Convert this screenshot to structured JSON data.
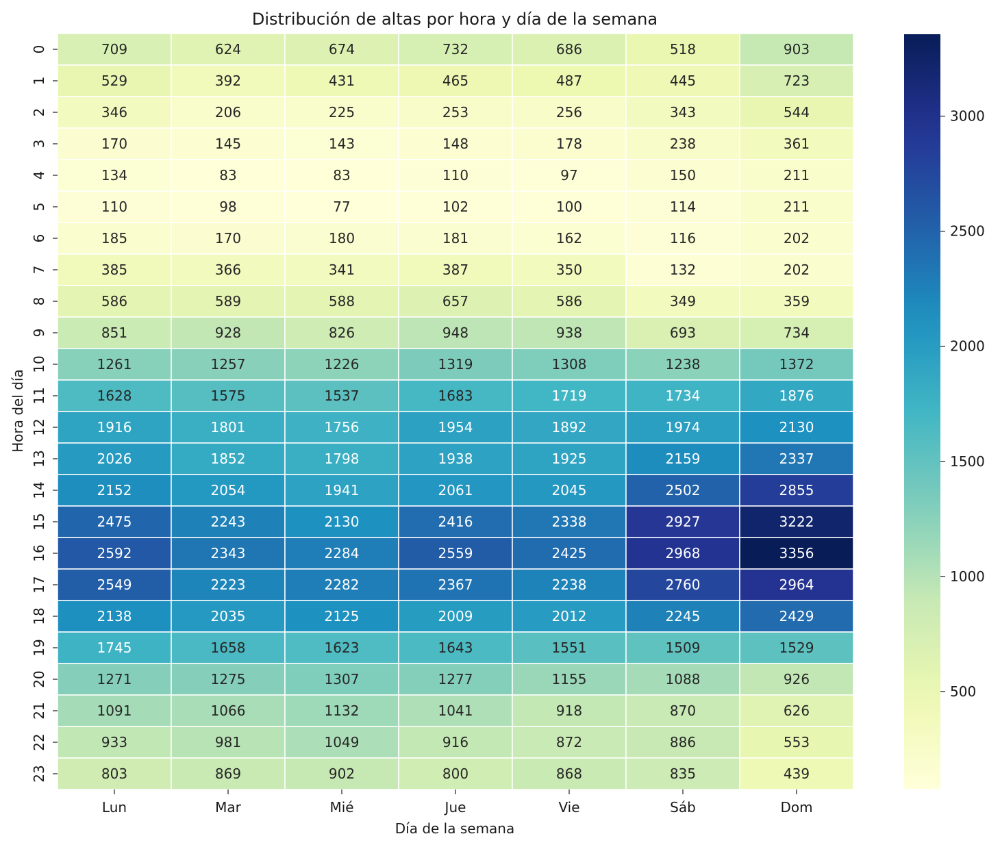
{
  "chart_data": {
    "type": "heatmap",
    "title": "Distribución de altas por hora y día de la semana",
    "xlabel": "Día de la semana",
    "ylabel": "Hora del día",
    "x_categories": [
      "Lun",
      "Mar",
      "Mié",
      "Jue",
      "Vie",
      "Sáb",
      "Dom"
    ],
    "y_categories": [
      "0",
      "1",
      "2",
      "3",
      "4",
      "5",
      "6",
      "7",
      "8",
      "9",
      "10",
      "11",
      "12",
      "13",
      "14",
      "15",
      "16",
      "17",
      "18",
      "19",
      "20",
      "21",
      "22",
      "23"
    ],
    "values": [
      [
        709,
        624,
        674,
        732,
        686,
        518,
        903
      ],
      [
        529,
        392,
        431,
        465,
        487,
        445,
        723
      ],
      [
        346,
        206,
        225,
        253,
        256,
        343,
        544
      ],
      [
        170,
        145,
        143,
        148,
        178,
        238,
        361
      ],
      [
        134,
        83,
        83,
        110,
        97,
        150,
        211
      ],
      [
        110,
        98,
        77,
        102,
        100,
        114,
        211
      ],
      [
        185,
        170,
        180,
        181,
        162,
        116,
        202
      ],
      [
        385,
        366,
        341,
        387,
        350,
        132,
        202
      ],
      [
        586,
        589,
        588,
        657,
        586,
        349,
        359
      ],
      [
        851,
        928,
        826,
        948,
        938,
        693,
        734
      ],
      [
        1261,
        1257,
        1226,
        1319,
        1308,
        1238,
        1372
      ],
      [
        1628,
        1575,
        1537,
        1683,
        1719,
        1734,
        1876
      ],
      [
        1916,
        1801,
        1756,
        1954,
        1892,
        1974,
        2130
      ],
      [
        2026,
        1852,
        1798,
        1938,
        1925,
        2159,
        2337
      ],
      [
        2152,
        2054,
        1941,
        2061,
        2045,
        2502,
        2855
      ],
      [
        2475,
        2243,
        2130,
        2416,
        2338,
        2927,
        3222
      ],
      [
        2592,
        2343,
        2284,
        2559,
        2425,
        2968,
        3356
      ],
      [
        2549,
        2223,
        2282,
        2367,
        2238,
        2760,
        2964
      ],
      [
        2138,
        2035,
        2125,
        2009,
        2012,
        2245,
        2429
      ],
      [
        1745,
        1658,
        1623,
        1643,
        1551,
        1509,
        1529
      ],
      [
        1271,
        1275,
        1307,
        1277,
        1155,
        1088,
        926
      ],
      [
        1091,
        1066,
        1132,
        1041,
        918,
        870,
        626
      ],
      [
        933,
        981,
        1049,
        916,
        872,
        886,
        553
      ],
      [
        803,
        869,
        902,
        800,
        868,
        835,
        439
      ]
    ],
    "colormap": "YlGnBu",
    "color_range": [
      77,
      3356
    ],
    "colorbar_ticks": [
      500,
      1000,
      1500,
      2000,
      2500,
      3000
    ],
    "colorbar_tick_labels": [
      "500",
      "1000",
      "1500",
      "2000",
      "2500",
      "3000"
    ],
    "cell_annotations": true,
    "grid": false
  }
}
